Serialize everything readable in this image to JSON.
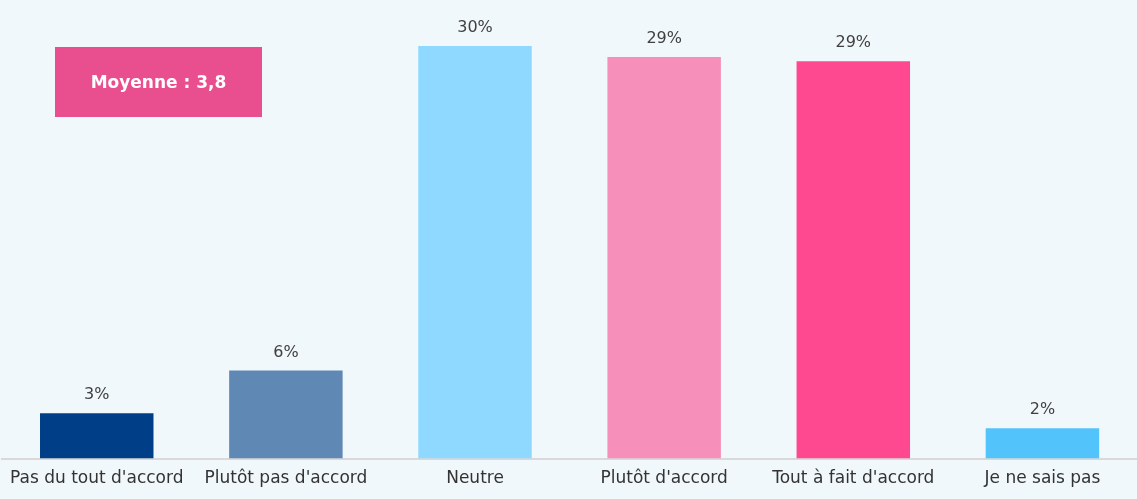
{
  "chart_data": {
    "type": "bar",
    "categories": [
      "Pas du tout d'accord",
      "Plutôt pas d'accord",
      "Neutre",
      "Plutôt d'accord",
      "Tout à fait d'accord",
      "Je ne sais pas"
    ],
    "values": [
      3.3,
      6.4,
      30,
      29.2,
      28.9,
      2.2
    ],
    "value_labels": [
      "3%",
      "6%",
      "30%",
      "29%",
      "29%",
      "2%"
    ],
    "colors": [
      "#003f87",
      "#5f88b5",
      "#8fd8ff",
      "#f78fbb",
      "#fe4890",
      "#52c3fb"
    ],
    "grid": false,
    "legend": false,
    "annotations": [
      "Moyenne : 3,8"
    ]
  }
}
